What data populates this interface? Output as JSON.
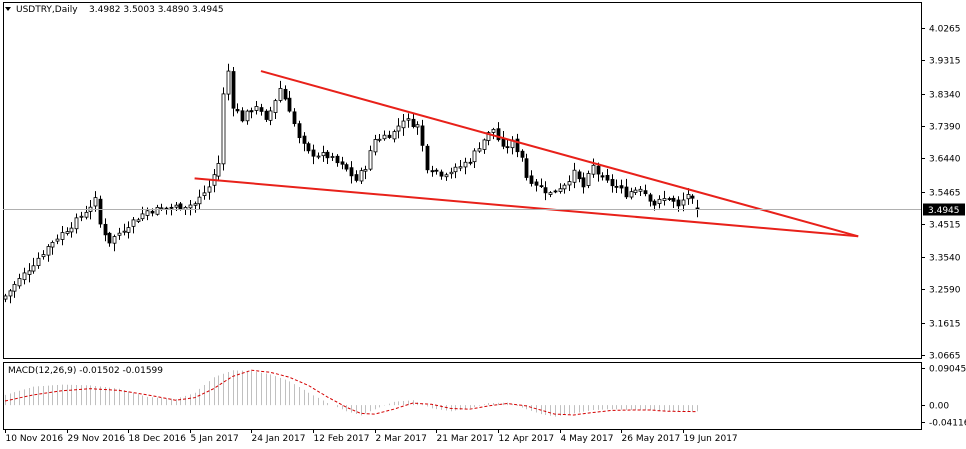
{
  "chart_data": [
    {
      "type": "candlestick",
      "title": "USDTRY,Daily",
      "ohlc_header": [
        "3.4982",
        "3.5003",
        "3.4890",
        "3.4945"
      ],
      "current_price": "3.4945",
      "ylim": [
        3.0665,
        4.0265
      ],
      "y_ticks": [
        "4.0265",
        "3.9315",
        "3.8340",
        "3.7390",
        "3.6440",
        "3.5465",
        "3.4515",
        "3.3540",
        "3.2590",
        "3.1615",
        "3.0665"
      ],
      "y_tick_values": [
        4.0265,
        3.9315,
        3.834,
        3.739,
        3.644,
        3.5465,
        3.4515,
        3.354,
        3.259,
        3.1615,
        3.0665
      ],
      "x_ticks": [
        "10 Nov 2016",
        "29 Nov 2016",
        "18 Dec 2016",
        "5 Jan 2017",
        "24 Jan 2017",
        "12 Feb 2017",
        "2 Mar 2017",
        "21 Mar 2017",
        "12 Apr 2017",
        "4 May 2017",
        "26 May 2017",
        "19 Jun 2017"
      ],
      "x_tick_bars": [
        0,
        13,
        26,
        39,
        52,
        65,
        78,
        91,
        104,
        117,
        130,
        143
      ],
      "close_path": [
        [
          0,
          3.24
        ],
        [
          5,
          3.32
        ],
        [
          10,
          3.4
        ],
        [
          15,
          3.46
        ],
        [
          19,
          3.52
        ],
        [
          20,
          3.45
        ],
        [
          22,
          3.4
        ],
        [
          26,
          3.45
        ],
        [
          30,
          3.49
        ],
        [
          35,
          3.5
        ],
        [
          40,
          3.51
        ],
        [
          43,
          3.56
        ],
        [
          45,
          3.63
        ],
        [
          46,
          3.83
        ],
        [
          47,
          3.9
        ],
        [
          48,
          3.8
        ],
        [
          50,
          3.76
        ],
        [
          53,
          3.8
        ],
        [
          55,
          3.75
        ],
        [
          58,
          3.85
        ],
        [
          60,
          3.79
        ],
        [
          62,
          3.7
        ],
        [
          64,
          3.66
        ],
        [
          68,
          3.65
        ],
        [
          72,
          3.61
        ],
        [
          74,
          3.58
        ],
        [
          76,
          3.62
        ],
        [
          78,
          3.7
        ],
        [
          82,
          3.72
        ],
        [
          84,
          3.76
        ],
        [
          87,
          3.74
        ],
        [
          89,
          3.62
        ],
        [
          92,
          3.6
        ],
        [
          95,
          3.61
        ],
        [
          98,
          3.64
        ],
        [
          101,
          3.7
        ],
        [
          103,
          3.73
        ],
        [
          105,
          3.67
        ],
        [
          107,
          3.69
        ],
        [
          109,
          3.65
        ],
        [
          110,
          3.59
        ],
        [
          113,
          3.56
        ],
        [
          115,
          3.54
        ],
        [
          118,
          3.57
        ],
        [
          120,
          3.6
        ],
        [
          122,
          3.56
        ],
        [
          124,
          3.62
        ],
        [
          126,
          3.58
        ],
        [
          129,
          3.56
        ],
        [
          131,
          3.54
        ],
        [
          134,
          3.56
        ],
        [
          137,
          3.51
        ],
        [
          140,
          3.53
        ],
        [
          142,
          3.5
        ],
        [
          144,
          3.54
        ],
        [
          146,
          3.4945
        ]
      ],
      "trendlines": [
        {
          "name": "upper",
          "color": "#e8211a",
          "points": [
            [
              54,
              3.9
            ],
            [
              180,
              3.415
            ]
          ]
        },
        {
          "name": "lower",
          "color": "#e8211a",
          "points": [
            [
              40,
              3.585
            ],
            [
              180,
              3.415
            ]
          ]
        }
      ],
      "candle_up_color": "#000000",
      "candle_down_color": "#000000",
      "up_fill": "#ffffff",
      "down_fill": "#000000"
    },
    {
      "type": "macd",
      "title": "MACD(12,26,9) -0.01502 -0.01599",
      "ylim": [
        -0.04116,
        0.09045
      ],
      "y_ticks": [
        "0.09045",
        "0.00",
        "-0.04116"
      ],
      "y_tick_values": [
        0.09045,
        0.0,
        -0.04116
      ],
      "histogram_path": [
        [
          0,
          0.025
        ],
        [
          6,
          0.045
        ],
        [
          12,
          0.05
        ],
        [
          18,
          0.048
        ],
        [
          24,
          0.04
        ],
        [
          30,
          0.02
        ],
        [
          36,
          0.015
        ],
        [
          40,
          0.03
        ],
        [
          44,
          0.068
        ],
        [
          48,
          0.085
        ],
        [
          52,
          0.083
        ],
        [
          56,
          0.075
        ],
        [
          60,
          0.058
        ],
        [
          64,
          0.03
        ],
        [
          68,
          0.005
        ],
        [
          72,
          -0.015
        ],
        [
          75,
          -0.025
        ],
        [
          78,
          -0.01
        ],
        [
          82,
          0.008
        ],
        [
          86,
          0.012
        ],
        [
          90,
          -0.008
        ],
        [
          94,
          -0.015
        ],
        [
          98,
          -0.008
        ],
        [
          102,
          0.005
        ],
        [
          106,
          0.006
        ],
        [
          110,
          -0.01
        ],
        [
          113,
          -0.022
        ],
        [
          116,
          -0.028
        ],
        [
          120,
          -0.02
        ],
        [
          124,
          -0.012
        ],
        [
          128,
          -0.01
        ],
        [
          132,
          -0.012
        ],
        [
          136,
          -0.013
        ],
        [
          140,
          -0.014
        ],
        [
          146,
          -0.015
        ]
      ],
      "signal_path": [
        [
          0,
          0.01
        ],
        [
          6,
          0.025
        ],
        [
          12,
          0.035
        ],
        [
          18,
          0.04
        ],
        [
          24,
          0.036
        ],
        [
          30,
          0.025
        ],
        [
          36,
          0.012
        ],
        [
          40,
          0.018
        ],
        [
          44,
          0.04
        ],
        [
          48,
          0.07
        ],
        [
          52,
          0.085
        ],
        [
          56,
          0.08
        ],
        [
          60,
          0.068
        ],
        [
          64,
          0.048
        ],
        [
          68,
          0.02
        ],
        [
          72,
          -0.005
        ],
        [
          75,
          -0.02
        ],
        [
          78,
          -0.022
        ],
        [
          82,
          -0.01
        ],
        [
          86,
          0.005
        ],
        [
          90,
          0.002
        ],
        [
          94,
          -0.008
        ],
        [
          98,
          -0.01
        ],
        [
          102,
          -0.002
        ],
        [
          106,
          0.004
        ],
        [
          110,
          -0.002
        ],
        [
          113,
          -0.012
        ],
        [
          116,
          -0.022
        ],
        [
          120,
          -0.024
        ],
        [
          124,
          -0.018
        ],
        [
          128,
          -0.013
        ],
        [
          132,
          -0.012
        ],
        [
          136,
          -0.012
        ],
        [
          140,
          -0.015
        ],
        [
          146,
          -0.016
        ]
      ],
      "histogram_color": "#c0c0c0",
      "signal_color": "#d40000"
    }
  ]
}
